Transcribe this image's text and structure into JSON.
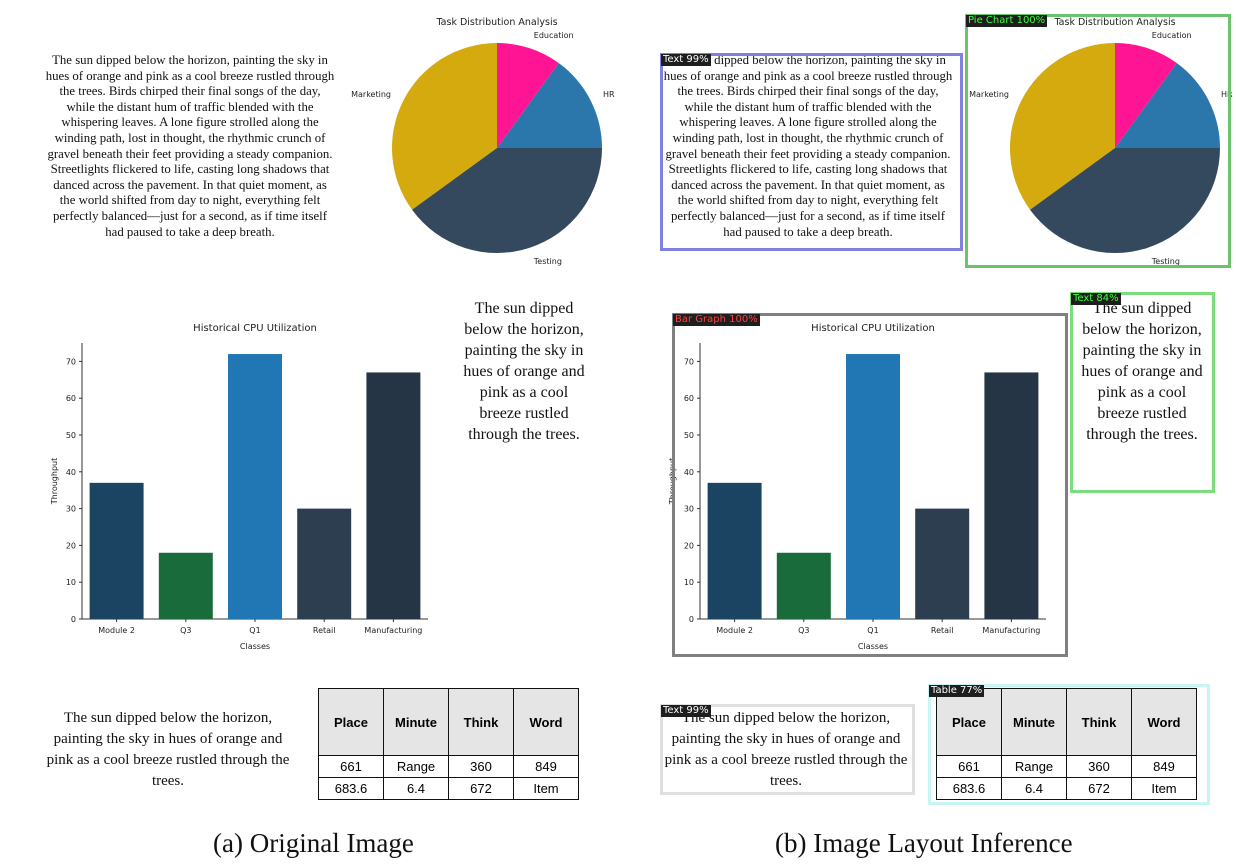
{
  "paragraphs": {
    "long": "The sun dipped below the horizon, painting the sky in hues of orange and pink as a cool breeze rustled through the trees. Birds chirped their final songs of the day, while the distant hum of traffic blended with the whispering leaves. A lone figure strolled along the winding path, lost in thought, the rhythmic crunch of gravel beneath their feet providing a steady companion. Streetlights flickered to life, casting long shadows that danced across the pavement. In that quiet moment, as the world shifted from day to night, everything felt perfectly balanced—just for a second, as if time itself had paused to take a deep breath.",
    "short": "The sun dipped below the horizon, painting the sky in hues of orange and pink as a cool breeze rustled through the trees."
  },
  "chart_data": [
    {
      "type": "pie",
      "title": "Task Distribution Analysis",
      "categories": [
        "HR",
        "Education",
        "Marketing",
        "Testing"
      ],
      "values": [
        15,
        10,
        35,
        40
      ],
      "colors": [
        "#2b76aa",
        "#ff1493",
        "#d4aa0f",
        "#34495e"
      ]
    },
    {
      "type": "bar",
      "title": "Historical CPU Utilization",
      "xlabel": "Classes",
      "ylabel": "Throughput",
      "categories": [
        "Module 2",
        "Q3",
        "Q1",
        "Retail",
        "Manufacturing"
      ],
      "values": [
        37,
        18,
        72,
        30,
        67
      ],
      "colors": [
        "#1b4463",
        "#1a6b3c",
        "#2077b4",
        "#2c3e50",
        "#253545"
      ],
      "ylim": [
        0,
        75
      ],
      "yticks": [
        0,
        10,
        20,
        30,
        40,
        50,
        60,
        70
      ]
    }
  ],
  "table": {
    "headers": [
      "Place",
      "Minute",
      "Think",
      "Word"
    ],
    "rows": [
      [
        "661",
        "Range",
        "360",
        "849"
      ],
      [
        "683.6",
        "6.4",
        "672",
        "Item"
      ]
    ]
  },
  "detections": [
    {
      "label": "Text 99%",
      "color": "#8080e0",
      "text_color": "#ffffff"
    },
    {
      "label": "Pie Chart 100%",
      "color": "#6cc36c",
      "text_color": "#3dff3d"
    },
    {
      "label": "Bar Graph 100%",
      "color": "#808080",
      "text_color": "#ff4040"
    },
    {
      "label": "Text 84%",
      "color": "#7ddc7d",
      "text_color": "#3dff3d"
    },
    {
      "label": "Text 99%",
      "color": "#e0e0e0",
      "text_color": "#ffffff"
    },
    {
      "label": "Table 77%",
      "color": "#c8f4f4",
      "text_color": "#ffffff"
    }
  ],
  "captions": {
    "original": "(a) Original Image",
    "inference": "(b) Image Layout Inference"
  }
}
